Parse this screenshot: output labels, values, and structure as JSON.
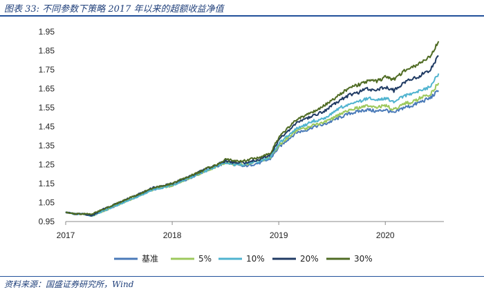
{
  "caption": "图表 33:  不同参数下策略 2017 年以来的超额收益净值",
  "source": "资料来源：国盛证券研究所，Wind",
  "chart_data": {
    "type": "line",
    "title": "不同参数下策略 2017 年以来的超额收益净值",
    "xlabel": "",
    "ylabel": "",
    "ylim": [
      0.95,
      1.95
    ],
    "xlim": [
      2017.0,
      2020.55
    ],
    "y_ticks": [
      0.95,
      1.05,
      1.15,
      1.25,
      1.35,
      1.45,
      1.55,
      1.65,
      1.75,
      1.85,
      1.95
    ],
    "y_tick_labels": [
      "0.95",
      "1.05",
      "1.15",
      "1.25",
      "1.35",
      "1.45",
      "1.55",
      "1.65",
      "1.75",
      "1.85",
      "1.95"
    ],
    "x_ticks": [
      2017,
      2018,
      2019,
      2020
    ],
    "x_tick_labels": [
      "2017",
      "2018",
      "2019",
      "2020"
    ],
    "grid": false,
    "legend_position": "bottom",
    "x": [
      2017.0,
      2017.08,
      2017.17,
      2017.25,
      2017.33,
      2017.42,
      2017.5,
      2017.58,
      2017.67,
      2017.75,
      2017.83,
      2017.92,
      2018.0,
      2018.08,
      2018.17,
      2018.25,
      2018.33,
      2018.42,
      2018.5,
      2018.58,
      2018.67,
      2018.75,
      2018.83,
      2018.92,
      2019.0,
      2019.08,
      2019.17,
      2019.25,
      2019.33,
      2019.42,
      2019.5,
      2019.58,
      2019.67,
      2019.75,
      2019.83,
      2019.92,
      2020.0,
      2020.08,
      2020.17,
      2020.25,
      2020.33,
      2020.42,
      2020.5
    ],
    "series": [
      {
        "name": "基准",
        "color": "#4a7ab8",
        "values": [
          1.0,
          0.99,
          0.99,
          0.98,
          1.0,
          1.02,
          1.04,
          1.06,
          1.08,
          1.1,
          1.12,
          1.13,
          1.14,
          1.16,
          1.18,
          1.2,
          1.22,
          1.24,
          1.26,
          1.25,
          1.24,
          1.25,
          1.26,
          1.28,
          1.34,
          1.38,
          1.42,
          1.43,
          1.45,
          1.46,
          1.48,
          1.5,
          1.52,
          1.53,
          1.54,
          1.53,
          1.54,
          1.52,
          1.55,
          1.56,
          1.58,
          1.6,
          1.64
        ]
      },
      {
        "name": "5%",
        "color": "#9dc85c",
        "values": [
          1.0,
          0.99,
          0.99,
          0.98,
          1.0,
          1.02,
          1.04,
          1.06,
          1.08,
          1.1,
          1.12,
          1.13,
          1.14,
          1.16,
          1.18,
          1.2,
          1.22,
          1.24,
          1.26,
          1.25,
          1.25,
          1.26,
          1.27,
          1.29,
          1.35,
          1.39,
          1.43,
          1.44,
          1.46,
          1.47,
          1.49,
          1.52,
          1.54,
          1.55,
          1.56,
          1.55,
          1.56,
          1.54,
          1.57,
          1.58,
          1.6,
          1.62,
          1.68
        ]
      },
      {
        "name": "10%",
        "color": "#4fb3cf",
        "values": [
          1.0,
          0.99,
          0.99,
          0.98,
          1.0,
          1.02,
          1.04,
          1.06,
          1.08,
          1.1,
          1.12,
          1.13,
          1.14,
          1.16,
          1.18,
          1.2,
          1.22,
          1.24,
          1.26,
          1.25,
          1.25,
          1.26,
          1.27,
          1.29,
          1.36,
          1.4,
          1.44,
          1.46,
          1.48,
          1.49,
          1.52,
          1.55,
          1.57,
          1.58,
          1.6,
          1.59,
          1.6,
          1.58,
          1.61,
          1.62,
          1.64,
          1.66,
          1.73
        ]
      },
      {
        "name": "20%",
        "color": "#1f3a63",
        "values": [
          1.0,
          0.99,
          0.99,
          0.98,
          1.01,
          1.03,
          1.05,
          1.07,
          1.09,
          1.11,
          1.13,
          1.14,
          1.15,
          1.17,
          1.19,
          1.21,
          1.23,
          1.25,
          1.27,
          1.26,
          1.26,
          1.27,
          1.28,
          1.3,
          1.38,
          1.42,
          1.47,
          1.49,
          1.51,
          1.53,
          1.56,
          1.59,
          1.62,
          1.63,
          1.65,
          1.64,
          1.66,
          1.64,
          1.68,
          1.7,
          1.72,
          1.75,
          1.82
        ]
      },
      {
        "name": "30%",
        "color": "#4f6b23",
        "values": [
          1.0,
          0.99,
          0.99,
          0.99,
          1.01,
          1.03,
          1.05,
          1.07,
          1.09,
          1.11,
          1.13,
          1.14,
          1.15,
          1.17,
          1.19,
          1.21,
          1.23,
          1.25,
          1.28,
          1.27,
          1.27,
          1.28,
          1.29,
          1.31,
          1.39,
          1.44,
          1.49,
          1.51,
          1.53,
          1.56,
          1.59,
          1.62,
          1.66,
          1.67,
          1.69,
          1.69,
          1.71,
          1.7,
          1.74,
          1.76,
          1.79,
          1.82,
          1.9
        ]
      }
    ]
  }
}
